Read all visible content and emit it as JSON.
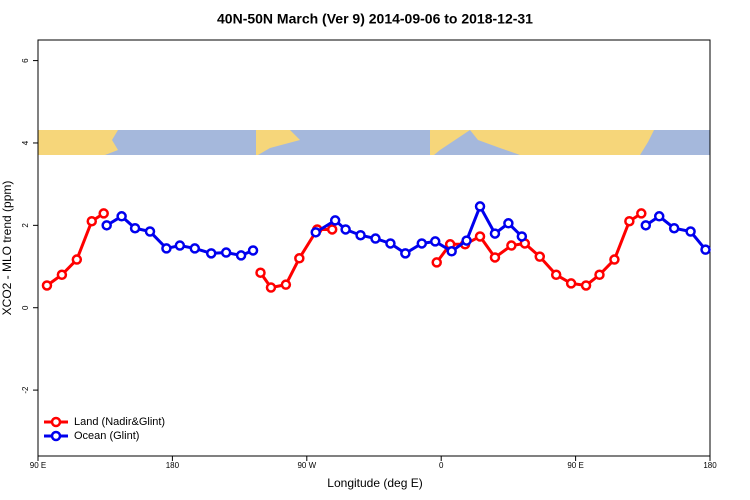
{
  "chart_data": {
    "type": "line",
    "title": "40N-50N March (Ver 9)   2014-09-06 to 2018-12-31",
    "x_label": "Longitude (deg E)",
    "y_label": "XCO2 - MLO trend (ppm)",
    "xlim": [
      90,
      540
    ],
    "ylim": [
      -3.6,
      6.5
    ],
    "xticks": [
      {
        "value": 90,
        "label": "90 E"
      },
      {
        "value": 180,
        "label": "180"
      },
      {
        "value": 270,
        "label": "90 W"
      },
      {
        "value": 360,
        "label": "0"
      },
      {
        "value": 450,
        "label": "90 E"
      },
      {
        "value": 540,
        "label": "180"
      }
    ],
    "yticks": [
      -2,
      0,
      2,
      4,
      6
    ],
    "legend_position": "bottom-left",
    "series": [
      {
        "name": "Land (Nadir&Glint)",
        "color": "#ff0000",
        "x": [
          96,
          106,
          116,
          126,
          134,
          null,
          239,
          246,
          256,
          265,
          277,
          287,
          null,
          357,
          366,
          376,
          386,
          396,
          407,
          416,
          426,
          437,
          447,
          457,
          466,
          476,
          486,
          494
        ],
        "values": [
          0.54,
          0.8,
          1.17,
          2.1,
          2.29,
          null,
          0.85,
          0.49,
          0.56,
          1.2,
          1.9,
          1.9,
          null,
          1.1,
          1.54,
          1.54,
          1.73,
          1.22,
          1.51,
          1.56,
          1.24,
          0.8,
          0.59,
          0.54,
          0.8,
          1.17,
          2.1,
          2.29
        ]
      },
      {
        "name": "Ocean (Glint)",
        "color": "#0000ee",
        "x": [
          136,
          146,
          155,
          165,
          176,
          185,
          195,
          206,
          216,
          226,
          234,
          null,
          276,
          289,
          296,
          306,
          316,
          326,
          336,
          347,
          356,
          367,
          377,
          386,
          396,
          405,
          414,
          null,
          497,
          506,
          516,
          527,
          537
        ],
        "values": [
          2.0,
          2.22,
          1.93,
          1.85,
          1.44,
          1.51,
          1.44,
          1.32,
          1.34,
          1.27,
          1.39,
          null,
          1.83,
          2.12,
          1.9,
          1.76,
          1.68,
          1.56,
          1.32,
          1.56,
          1.61,
          1.37,
          1.63,
          2.46,
          1.8,
          2.05,
          1.73,
          null,
          2.0,
          2.22,
          1.93,
          1.85,
          1.41
        ]
      }
    ]
  }
}
